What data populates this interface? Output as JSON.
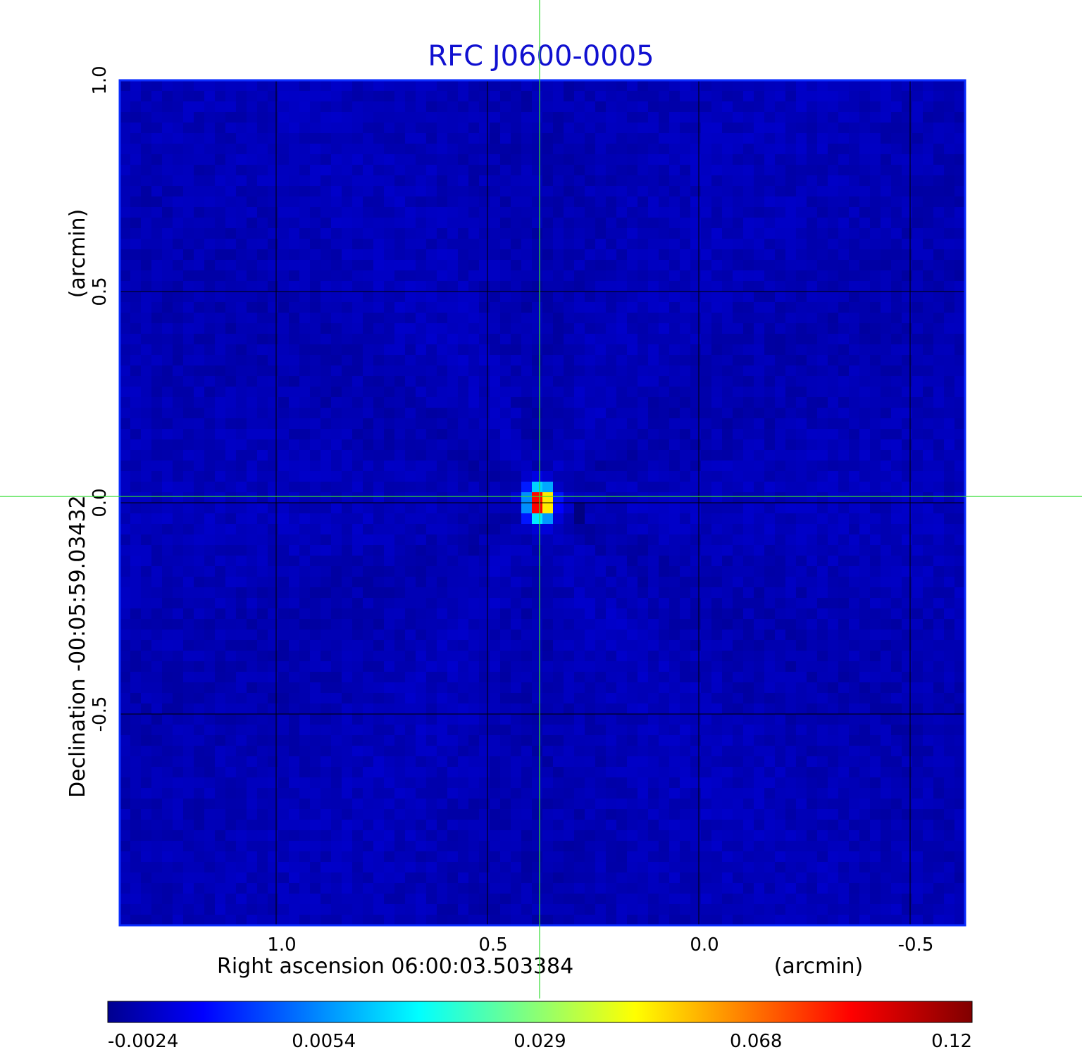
{
  "chart_data": {
    "type": "heatmap",
    "title": "RFC J0600-0005",
    "xlabel": "Right ascension  06:00:03.503384",
    "xunit": "(arcmin)",
    "ylabel": "Declination  -00:05:59.03432",
    "yunit": "(arcmin)",
    "xlim": [
      1.37,
      -0.63
    ],
    "ylim": [
      -1.0,
      1.0
    ],
    "x_ticks": [
      {
        "value": 1.0,
        "label": "1.0"
      },
      {
        "value": 0.5,
        "label": "0.5"
      },
      {
        "value": 0.0,
        "label": "0.0"
      },
      {
        "value": -0.5,
        "label": "-0.5"
      }
    ],
    "y_ticks": [
      {
        "value": 1.0,
        "label": "1.0"
      },
      {
        "value": 0.5,
        "label": "0.5"
      },
      {
        "value": 0.0,
        "label": "0.0"
      },
      {
        "value": -0.5,
        "label": "-0.5"
      }
    ],
    "grid": true,
    "colormap": "jet",
    "colorbar": {
      "ticks": [
        "-0.0024",
        "0.0054",
        "0.029",
        "0.068",
        "0.12"
      ],
      "min": -0.0024,
      "max": 0.12
    },
    "background_level": 0.004,
    "source": {
      "x": 0.375,
      "y": 0.0,
      "peak": 0.12
    },
    "crosshair": {
      "x": 0.375,
      "y": 0.015,
      "color": "#33dd33"
    }
  }
}
